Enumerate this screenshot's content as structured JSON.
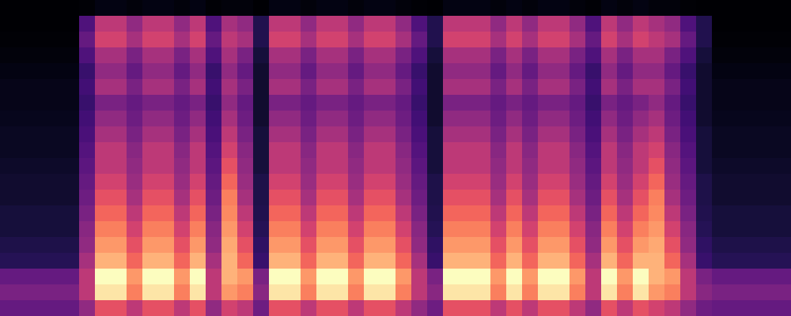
{
  "chart_data": {
    "type": "heatmap",
    "color": "magma",
    "tick_labels": false,
    "cells": [
      [
        0.02,
        0.02,
        0.02,
        0.02,
        0.02,
        0.03,
        0.05,
        0.05,
        0.04,
        0.05,
        0.05,
        0.04,
        0.05,
        0.03,
        0.04,
        0.04,
        0.02,
        0.05,
        0.05,
        0.04,
        0.05,
        0.05,
        0.04,
        0.05,
        0.05,
        0.04,
        0.03,
        0.02,
        0.05,
        0.05,
        0.05,
        0.04,
        0.05,
        0.04,
        0.05,
        0.05,
        0.04,
        0.03,
        0.05,
        0.04,
        0.05,
        0.04,
        0.04,
        0.03,
        0.02,
        0.02,
        0.02,
        0.02,
        0.02,
        0.02
      ],
      [
        0.02,
        0.02,
        0.02,
        0.02,
        0.02,
        0.25,
        0.5,
        0.5,
        0.4,
        0.5,
        0.5,
        0.4,
        0.5,
        0.25,
        0.45,
        0.4,
        0.15,
        0.5,
        0.5,
        0.4,
        0.5,
        0.5,
        0.4,
        0.5,
        0.5,
        0.4,
        0.25,
        0.15,
        0.5,
        0.5,
        0.5,
        0.4,
        0.5,
        0.4,
        0.5,
        0.5,
        0.4,
        0.25,
        0.5,
        0.4,
        0.5,
        0.45,
        0.4,
        0.25,
        0.15,
        0.02,
        0.02,
        0.02,
        0.02,
        0.02
      ],
      [
        0.03,
        0.03,
        0.03,
        0.03,
        0.03,
        0.3,
        0.55,
        0.55,
        0.45,
        0.55,
        0.55,
        0.45,
        0.55,
        0.3,
        0.5,
        0.45,
        0.15,
        0.55,
        0.55,
        0.45,
        0.55,
        0.55,
        0.45,
        0.55,
        0.55,
        0.45,
        0.3,
        0.15,
        0.55,
        0.55,
        0.55,
        0.45,
        0.55,
        0.45,
        0.55,
        0.55,
        0.45,
        0.3,
        0.55,
        0.45,
        0.55,
        0.5,
        0.45,
        0.3,
        0.15,
        0.03,
        0.03,
        0.03,
        0.03,
        0.03
      ],
      [
        0.04,
        0.04,
        0.04,
        0.04,
        0.04,
        0.25,
        0.45,
        0.45,
        0.35,
        0.45,
        0.45,
        0.35,
        0.45,
        0.25,
        0.45,
        0.35,
        0.12,
        0.45,
        0.45,
        0.35,
        0.45,
        0.45,
        0.35,
        0.45,
        0.45,
        0.35,
        0.25,
        0.12,
        0.45,
        0.45,
        0.45,
        0.35,
        0.45,
        0.35,
        0.45,
        0.45,
        0.35,
        0.25,
        0.45,
        0.35,
        0.45,
        0.45,
        0.35,
        0.25,
        0.12,
        0.04,
        0.04,
        0.04,
        0.04,
        0.04
      ],
      [
        0.05,
        0.05,
        0.05,
        0.05,
        0.05,
        0.2,
        0.4,
        0.4,
        0.3,
        0.4,
        0.4,
        0.3,
        0.4,
        0.2,
        0.4,
        0.3,
        0.1,
        0.4,
        0.4,
        0.3,
        0.4,
        0.4,
        0.3,
        0.4,
        0.4,
        0.3,
        0.2,
        0.1,
        0.4,
        0.4,
        0.4,
        0.3,
        0.4,
        0.3,
        0.4,
        0.4,
        0.3,
        0.2,
        0.4,
        0.3,
        0.4,
        0.4,
        0.3,
        0.2,
        0.1,
        0.05,
        0.05,
        0.05,
        0.05,
        0.05
      ],
      [
        0.06,
        0.06,
        0.06,
        0.06,
        0.06,
        0.22,
        0.45,
        0.45,
        0.35,
        0.45,
        0.45,
        0.35,
        0.45,
        0.22,
        0.45,
        0.35,
        0.1,
        0.45,
        0.45,
        0.35,
        0.45,
        0.45,
        0.35,
        0.45,
        0.45,
        0.35,
        0.22,
        0.1,
        0.45,
        0.45,
        0.45,
        0.35,
        0.45,
        0.35,
        0.45,
        0.45,
        0.35,
        0.22,
        0.45,
        0.35,
        0.45,
        0.45,
        0.35,
        0.22,
        0.1,
        0.06,
        0.06,
        0.06,
        0.06,
        0.06
      ],
      [
        0.06,
        0.06,
        0.06,
        0.06,
        0.06,
        0.2,
        0.35,
        0.35,
        0.3,
        0.35,
        0.35,
        0.3,
        0.35,
        0.2,
        0.4,
        0.3,
        0.1,
        0.35,
        0.35,
        0.3,
        0.35,
        0.35,
        0.3,
        0.35,
        0.35,
        0.3,
        0.2,
        0.1,
        0.35,
        0.35,
        0.35,
        0.3,
        0.35,
        0.3,
        0.35,
        0.35,
        0.3,
        0.2,
        0.35,
        0.3,
        0.35,
        0.4,
        0.3,
        0.2,
        0.1,
        0.06,
        0.06,
        0.06,
        0.06,
        0.06
      ],
      [
        0.07,
        0.07,
        0.07,
        0.07,
        0.07,
        0.22,
        0.4,
        0.4,
        0.32,
        0.4,
        0.4,
        0.32,
        0.4,
        0.22,
        0.45,
        0.32,
        0.1,
        0.4,
        0.4,
        0.32,
        0.4,
        0.4,
        0.32,
        0.4,
        0.4,
        0.32,
        0.22,
        0.1,
        0.4,
        0.4,
        0.4,
        0.32,
        0.4,
        0.32,
        0.4,
        0.4,
        0.32,
        0.22,
        0.4,
        0.32,
        0.4,
        0.45,
        0.32,
        0.22,
        0.1,
        0.07,
        0.07,
        0.07,
        0.07,
        0.07
      ],
      [
        0.08,
        0.08,
        0.08,
        0.08,
        0.08,
        0.24,
        0.45,
        0.45,
        0.35,
        0.45,
        0.45,
        0.35,
        0.45,
        0.24,
        0.5,
        0.35,
        0.12,
        0.45,
        0.45,
        0.35,
        0.45,
        0.45,
        0.35,
        0.45,
        0.45,
        0.35,
        0.24,
        0.12,
        0.45,
        0.45,
        0.45,
        0.35,
        0.45,
        0.35,
        0.45,
        0.45,
        0.35,
        0.24,
        0.45,
        0.35,
        0.45,
        0.5,
        0.35,
        0.24,
        0.12,
        0.08,
        0.08,
        0.08,
        0.08,
        0.08
      ],
      [
        0.08,
        0.08,
        0.08,
        0.08,
        0.08,
        0.26,
        0.5,
        0.5,
        0.38,
        0.5,
        0.5,
        0.38,
        0.5,
        0.26,
        0.55,
        0.38,
        0.12,
        0.5,
        0.5,
        0.38,
        0.5,
        0.5,
        0.38,
        0.5,
        0.5,
        0.38,
        0.26,
        0.12,
        0.5,
        0.5,
        0.5,
        0.38,
        0.5,
        0.38,
        0.5,
        0.5,
        0.38,
        0.26,
        0.5,
        0.38,
        0.5,
        0.55,
        0.38,
        0.26,
        0.12,
        0.08,
        0.08,
        0.08,
        0.08,
        0.08
      ],
      [
        0.09,
        0.09,
        0.09,
        0.09,
        0.09,
        0.28,
        0.5,
        0.5,
        0.4,
        0.5,
        0.5,
        0.4,
        0.5,
        0.28,
        0.6,
        0.4,
        0.12,
        0.5,
        0.5,
        0.4,
        0.5,
        0.5,
        0.4,
        0.5,
        0.5,
        0.4,
        0.28,
        0.12,
        0.5,
        0.5,
        0.5,
        0.4,
        0.5,
        0.4,
        0.5,
        0.5,
        0.4,
        0.28,
        0.5,
        0.4,
        0.5,
        0.6,
        0.4,
        0.28,
        0.12,
        0.09,
        0.09,
        0.09,
        0.09,
        0.09
      ],
      [
        0.1,
        0.1,
        0.1,
        0.1,
        0.1,
        0.3,
        0.55,
        0.55,
        0.42,
        0.55,
        0.55,
        0.42,
        0.55,
        0.3,
        0.65,
        0.42,
        0.14,
        0.55,
        0.55,
        0.42,
        0.55,
        0.55,
        0.42,
        0.55,
        0.55,
        0.42,
        0.3,
        0.14,
        0.55,
        0.55,
        0.55,
        0.42,
        0.55,
        0.42,
        0.55,
        0.55,
        0.42,
        0.3,
        0.55,
        0.42,
        0.55,
        0.65,
        0.42,
        0.3,
        0.14,
        0.1,
        0.1,
        0.1,
        0.1,
        0.1
      ],
      [
        0.1,
        0.1,
        0.1,
        0.1,
        0.1,
        0.32,
        0.6,
        0.6,
        0.45,
        0.6,
        0.6,
        0.45,
        0.6,
        0.32,
        0.7,
        0.45,
        0.14,
        0.6,
        0.6,
        0.45,
        0.6,
        0.6,
        0.45,
        0.6,
        0.6,
        0.45,
        0.32,
        0.14,
        0.6,
        0.6,
        0.6,
        0.45,
        0.6,
        0.45,
        0.6,
        0.6,
        0.45,
        0.32,
        0.6,
        0.45,
        0.6,
        0.7,
        0.45,
        0.32,
        0.14,
        0.1,
        0.1,
        0.1,
        0.1,
        0.1
      ],
      [
        0.12,
        0.12,
        0.12,
        0.12,
        0.12,
        0.35,
        0.65,
        0.65,
        0.5,
        0.65,
        0.65,
        0.5,
        0.65,
        0.35,
        0.72,
        0.5,
        0.15,
        0.65,
        0.65,
        0.5,
        0.65,
        0.65,
        0.5,
        0.65,
        0.65,
        0.5,
        0.35,
        0.15,
        0.65,
        0.65,
        0.65,
        0.5,
        0.65,
        0.5,
        0.65,
        0.65,
        0.5,
        0.35,
        0.65,
        0.5,
        0.65,
        0.72,
        0.5,
        0.35,
        0.15,
        0.12,
        0.12,
        0.12,
        0.12,
        0.12
      ],
      [
        0.12,
        0.12,
        0.12,
        0.12,
        0.12,
        0.38,
        0.7,
        0.7,
        0.55,
        0.7,
        0.7,
        0.55,
        0.7,
        0.38,
        0.75,
        0.55,
        0.16,
        0.7,
        0.7,
        0.55,
        0.7,
        0.7,
        0.55,
        0.7,
        0.7,
        0.55,
        0.38,
        0.16,
        0.7,
        0.7,
        0.7,
        0.55,
        0.7,
        0.55,
        0.7,
        0.7,
        0.55,
        0.38,
        0.7,
        0.55,
        0.7,
        0.75,
        0.55,
        0.38,
        0.16,
        0.12,
        0.12,
        0.12,
        0.12,
        0.12
      ],
      [
        0.14,
        0.14,
        0.14,
        0.14,
        0.14,
        0.4,
        0.75,
        0.75,
        0.6,
        0.75,
        0.75,
        0.6,
        0.75,
        0.4,
        0.78,
        0.6,
        0.18,
        0.75,
        0.75,
        0.6,
        0.75,
        0.75,
        0.6,
        0.75,
        0.75,
        0.6,
        0.4,
        0.18,
        0.75,
        0.75,
        0.75,
        0.6,
        0.75,
        0.6,
        0.75,
        0.75,
        0.6,
        0.4,
        0.75,
        0.6,
        0.75,
        0.78,
        0.6,
        0.4,
        0.18,
        0.14,
        0.14,
        0.14,
        0.14,
        0.14
      ],
      [
        0.16,
        0.16,
        0.16,
        0.16,
        0.16,
        0.45,
        0.8,
        0.8,
        0.65,
        0.8,
        0.8,
        0.65,
        0.8,
        0.45,
        0.8,
        0.65,
        0.2,
        0.8,
        0.8,
        0.65,
        0.8,
        0.8,
        0.65,
        0.8,
        0.8,
        0.65,
        0.45,
        0.2,
        0.8,
        0.8,
        0.8,
        0.65,
        0.8,
        0.65,
        0.8,
        0.8,
        0.65,
        0.45,
        0.8,
        0.65,
        0.8,
        0.8,
        0.65,
        0.45,
        0.2,
        0.16,
        0.16,
        0.16,
        0.16,
        0.16
      ],
      [
        0.3,
        0.3,
        0.3,
        0.3,
        0.3,
        0.5,
        0.95,
        0.95,
        0.75,
        0.95,
        0.95,
        0.75,
        0.95,
        0.5,
        0.8,
        0.75,
        0.35,
        0.95,
        0.95,
        0.75,
        0.95,
        0.95,
        0.75,
        0.95,
        0.95,
        0.75,
        0.5,
        0.35,
        0.95,
        0.95,
        0.95,
        0.75,
        0.95,
        0.75,
        0.95,
        0.95,
        0.75,
        0.5,
        0.95,
        0.75,
        0.95,
        0.8,
        0.75,
        0.5,
        0.35,
        0.3,
        0.3,
        0.3,
        0.3,
        0.3
      ],
      [
        0.35,
        0.35,
        0.35,
        0.35,
        0.35,
        0.5,
        0.9,
        0.9,
        0.7,
        0.9,
        0.9,
        0.7,
        0.9,
        0.5,
        0.75,
        0.7,
        0.38,
        0.9,
        0.9,
        0.7,
        0.9,
        0.9,
        0.7,
        0.9,
        0.9,
        0.7,
        0.5,
        0.38,
        0.9,
        0.9,
        0.9,
        0.7,
        0.9,
        0.7,
        0.9,
        0.9,
        0.7,
        0.5,
        0.9,
        0.7,
        0.9,
        0.75,
        0.7,
        0.5,
        0.38,
        0.35,
        0.35,
        0.35,
        0.35,
        0.35
      ],
      [
        0.3,
        0.3,
        0.3,
        0.3,
        0.3,
        0.4,
        0.6,
        0.6,
        0.5,
        0.6,
        0.6,
        0.5,
        0.6,
        0.4,
        0.55,
        0.5,
        0.32,
        0.6,
        0.6,
        0.5,
        0.6,
        0.6,
        0.5,
        0.6,
        0.6,
        0.5,
        0.4,
        0.32,
        0.6,
        0.6,
        0.6,
        0.5,
        0.6,
        0.5,
        0.6,
        0.6,
        0.5,
        0.4,
        0.6,
        0.5,
        0.6,
        0.55,
        0.5,
        0.4,
        0.32,
        0.3,
        0.3,
        0.3,
        0.3,
        0.3
      ]
    ]
  }
}
